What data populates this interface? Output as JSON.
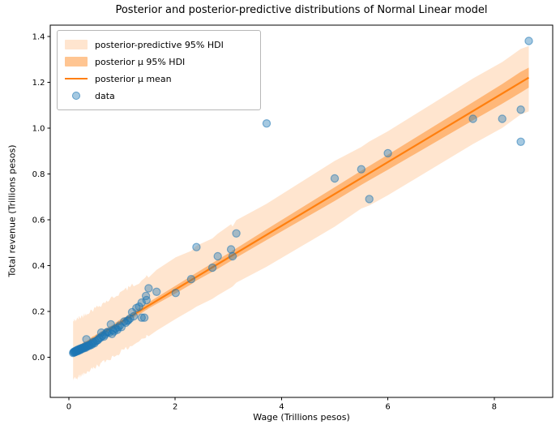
{
  "window": {
    "title": "Posterior and posterior-predictive distributions of Normal Linear model"
  },
  "chart_data": {
    "type": "scatter",
    "title": "Posterior and posterior-predictive distributions of Normal Linear model",
    "xlabel": "Wage (Trillions pesos)",
    "ylabel": "Total revenue (Trillions pesos)",
    "xlim": [
      -0.35,
      9.1
    ],
    "ylim": [
      -0.176,
      1.449
    ],
    "xticks": [
      0,
      2,
      4,
      6,
      8
    ],
    "yticks": [
      0.0,
      0.2,
      0.4,
      0.6,
      0.8,
      1.0,
      1.2,
      1.4
    ],
    "grid": false,
    "legend_position": "upper left",
    "legend": [
      {
        "label": "posterior-predictive 95% HDI",
        "type": "patch",
        "color": "rgba(255,127,14,0.2)"
      },
      {
        "label": "posterior μ 95% HDI",
        "type": "patch",
        "color": "rgba(255,127,14,0.45)"
      },
      {
        "label": "posterior μ mean",
        "type": "line",
        "color": "#ff7f0e"
      },
      {
        "label": "data",
        "type": "marker",
        "color": "#1f77b4"
      }
    ],
    "series": {
      "data_points": {
        "name": "data",
        "x": [
          0.08,
          0.09,
          0.1,
          0.11,
          0.12,
          0.13,
          0.14,
          0.15,
          0.16,
          0.17,
          0.18,
          0.19,
          0.2,
          0.21,
          0.22,
          0.23,
          0.24,
          0.25,
          0.26,
          0.28,
          0.29,
          0.3,
          0.32,
          0.33,
          0.33,
          0.35,
          0.37,
          0.39,
          0.41,
          0.43,
          0.45,
          0.46,
          0.48,
          0.5,
          0.53,
          0.55,
          0.57,
          0.6,
          0.61,
          0.63,
          0.66,
          0.68,
          0.71,
          0.73,
          0.76,
          0.79,
          0.81,
          0.83,
          0.85,
          0.88,
          0.91,
          0.93,
          0.96,
          0.99,
          1.04,
          1.07,
          1.1,
          1.12,
          1.15,
          1.19,
          1.22,
          1.27,
          1.32,
          1.37,
          1.37,
          1.42,
          1.45,
          1.46,
          1.5,
          1.65,
          2.01,
          2.3,
          2.4,
          2.7,
          2.8,
          3.05,
          3.08,
          3.15,
          3.72,
          5.0,
          5.5,
          5.65,
          6.0,
          7.6,
          8.15,
          8.5,
          8.5,
          8.65
        ],
        "y": [
          0.018,
          0.022,
          0.02,
          0.025,
          0.022,
          0.027,
          0.024,
          0.03,
          0.026,
          0.032,
          0.028,
          0.034,
          0.03,
          0.036,
          0.032,
          0.038,
          0.035,
          0.04,
          0.037,
          0.042,
          0.039,
          0.045,
          0.042,
          0.048,
          0.078,
          0.046,
          0.052,
          0.05,
          0.056,
          0.054,
          0.06,
          0.066,
          0.06,
          0.068,
          0.072,
          0.075,
          0.082,
          0.085,
          0.107,
          0.093,
          0.09,
          0.098,
          0.107,
          0.11,
          0.107,
          0.143,
          0.101,
          0.118,
          0.112,
          0.125,
          0.119,
          0.13,
          0.138,
          0.131,
          0.155,
          0.15,
          0.158,
          0.161,
          0.168,
          0.196,
          0.178,
          0.214,
          0.22,
          0.238,
          0.172,
          0.172,
          0.267,
          0.249,
          0.3,
          0.285,
          0.28,
          0.34,
          0.48,
          0.39,
          0.44,
          0.47,
          0.44,
          0.54,
          1.02,
          0.78,
          0.82,
          0.69,
          0.89,
          1.04,
          1.04,
          1.08,
          0.94,
          1.38
        ]
      },
      "posterior_mean_line": {
        "name": "posterior μ mean",
        "intercept": 0.016,
        "slope": 0.1392,
        "x_start": 0.08,
        "x_end": 8.65
      },
      "posterior_mu_hdi": {
        "name": "posterior μ 95% HDI",
        "halfwidth_at_x0": 0.0075,
        "halfwidth_slope": 0.00435
      },
      "posterior_predictive_hdi": {
        "name": "posterior-predictive 95% HDI",
        "halfwidth_at_x0": 0.128,
        "halfwidth_slope": 0.0016
      }
    },
    "colors": {
      "predictive_band": "rgba(255,127,14,0.2)",
      "mu_band": "rgba(255,127,14,0.45)",
      "mean_line": "#ff7f0e",
      "data_fill": "rgba(31,119,180,0.4)",
      "data_edge": "rgba(31,119,180,0.55)",
      "axis": "#000000"
    }
  }
}
